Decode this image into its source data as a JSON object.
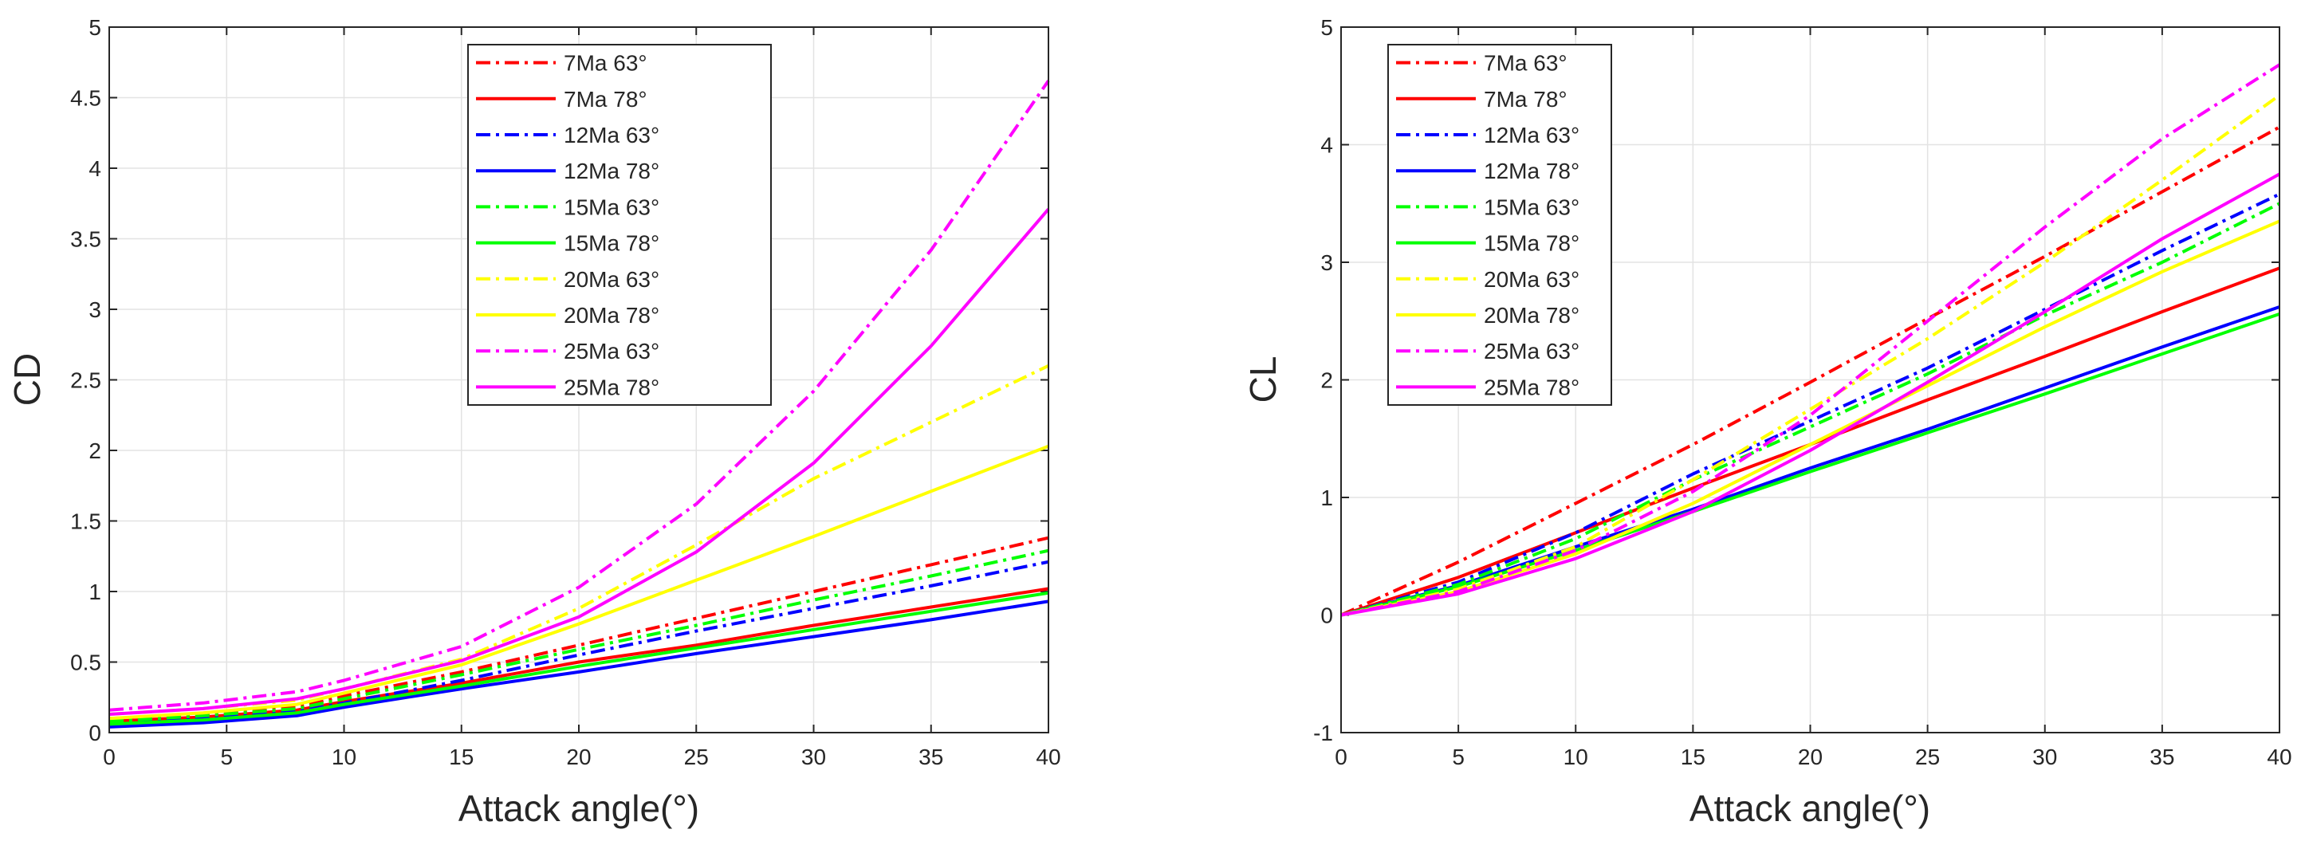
{
  "chart_data": [
    {
      "type": "line",
      "title": "",
      "xlabel": "Attack angle(°)",
      "ylabel": "CD",
      "xlim": [
        0,
        40
      ],
      "ylim": [
        0,
        5
      ],
      "xticks": [
        0,
        5,
        10,
        15,
        20,
        25,
        30,
        35,
        40
      ],
      "yticks": [
        0,
        0.5,
        1,
        1.5,
        2,
        2.5,
        3,
        3.5,
        4,
        4.5,
        5
      ],
      "xtick_labels": [
        "0",
        "5",
        "10",
        "15",
        "20",
        "25",
        "30",
        "35",
        "40"
      ],
      "ytick_labels": [
        "0",
        "0.5",
        "1",
        "1.5",
        "2",
        "2.5",
        "3",
        "3.5",
        "4",
        "4.5",
        "5"
      ],
      "grid": true,
      "legend_position": "top-center",
      "x": [
        0,
        4,
        8,
        10,
        15,
        20,
        25,
        30,
        35,
        40
      ],
      "series": [
        {
          "name": "7Ma 63°",
          "color": "#ff0000",
          "dash": "dashdot",
          "values": [
            0.1,
            0.13,
            0.18,
            0.26,
            0.43,
            0.62,
            0.81,
            1.0,
            1.19,
            1.38
          ]
        },
        {
          "name": "7Ma 78°",
          "color": "#ff0000",
          "dash": "solid",
          "values": [
            0.08,
            0.11,
            0.16,
            0.22,
            0.35,
            0.5,
            0.62,
            0.76,
            0.89,
            1.02
          ]
        },
        {
          "name": "12Ma 63°",
          "color": "#0000ff",
          "dash": "dashdot",
          "values": [
            0.06,
            0.1,
            0.15,
            0.21,
            0.37,
            0.55,
            0.72,
            0.88,
            1.04,
            1.21
          ]
        },
        {
          "name": "12Ma 78°",
          "color": "#0000ff",
          "dash": "solid",
          "values": [
            0.04,
            0.07,
            0.12,
            0.18,
            0.31,
            0.43,
            0.56,
            0.68,
            0.8,
            0.93
          ]
        },
        {
          "name": "15Ma 63°",
          "color": "#00ff00",
          "dash": "dashdot",
          "values": [
            0.08,
            0.12,
            0.17,
            0.24,
            0.41,
            0.59,
            0.76,
            0.94,
            1.11,
            1.29
          ]
        },
        {
          "name": "15Ma 78°",
          "color": "#00ff00",
          "dash": "solid",
          "values": [
            0.06,
            0.09,
            0.14,
            0.2,
            0.33,
            0.47,
            0.6,
            0.73,
            0.86,
            0.99
          ]
        },
        {
          "name": "20Ma 63°",
          "color": "#ffff00",
          "dash": "dashdot",
          "values": [
            0.13,
            0.17,
            0.23,
            0.31,
            0.52,
            0.88,
            1.33,
            1.8,
            2.2,
            2.6
          ]
        },
        {
          "name": "20Ma 78°",
          "color": "#ffff00",
          "dash": "solid",
          "values": [
            0.1,
            0.14,
            0.2,
            0.28,
            0.48,
            0.77,
            1.08,
            1.39,
            1.71,
            2.03
          ]
        },
        {
          "name": "25Ma 63°",
          "color": "#ff00ff",
          "dash": "dashdot",
          "values": [
            0.16,
            0.21,
            0.29,
            0.37,
            0.61,
            1.03,
            1.62,
            2.42,
            3.42,
            4.62
          ]
        },
        {
          "name": "25Ma 78°",
          "color": "#ff00ff",
          "dash": "solid",
          "values": [
            0.13,
            0.17,
            0.24,
            0.31,
            0.51,
            0.82,
            1.28,
            1.91,
            2.74,
            3.71
          ]
        }
      ]
    },
    {
      "type": "line",
      "title": "",
      "xlabel": "Attack angle(°)",
      "ylabel": "CL",
      "xlim": [
        0,
        40
      ],
      "ylim": [
        -1,
        5
      ],
      "xticks": [
        0,
        5,
        10,
        15,
        20,
        25,
        30,
        35,
        40
      ],
      "yticks": [
        -1,
        0,
        1,
        2,
        3,
        4,
        5
      ],
      "xtick_labels": [
        "0",
        "5",
        "10",
        "15",
        "20",
        "25",
        "30",
        "35",
        "40"
      ],
      "ytick_labels": [
        "-1",
        "0",
        "1",
        "2",
        "3",
        "4",
        "5"
      ],
      "grid": true,
      "legend_position": "top-left",
      "x": [
        0,
        5,
        10,
        15,
        20,
        25,
        30,
        35,
        40
      ],
      "series": [
        {
          "name": "7Ma 63°",
          "color": "#ff0000",
          "dash": "dashdot",
          "values": [
            0,
            0.45,
            0.95,
            1.45,
            1.98,
            2.52,
            3.05,
            3.6,
            4.15
          ]
        },
        {
          "name": "7Ma 78°",
          "color": "#ff0000",
          "dash": "solid",
          "values": [
            0,
            0.32,
            0.7,
            1.08,
            1.45,
            1.83,
            2.2,
            2.58,
            2.95
          ]
        },
        {
          "name": "12Ma 63°",
          "color": "#0000ff",
          "dash": "dashdot",
          "values": [
            0,
            0.28,
            0.7,
            1.2,
            1.65,
            2.1,
            2.6,
            3.1,
            3.58
          ]
        },
        {
          "name": "12Ma 78°",
          "color": "#0000ff",
          "dash": "solid",
          "values": [
            0,
            0.25,
            0.58,
            0.9,
            1.25,
            1.58,
            1.93,
            2.28,
            2.62
          ]
        },
        {
          "name": "15Ma 63°",
          "color": "#00ff00",
          "dash": "dashdot",
          "values": [
            0,
            0.26,
            0.65,
            1.15,
            1.6,
            2.05,
            2.55,
            3.0,
            3.5
          ]
        },
        {
          "name": "15Ma 78°",
          "color": "#00ff00",
          "dash": "solid",
          "values": [
            0,
            0.24,
            0.55,
            0.88,
            1.22,
            1.55,
            1.88,
            2.22,
            2.56
          ]
        },
        {
          "name": "20Ma 63°",
          "color": "#ffff00",
          "dash": "dashdot",
          "values": [
            0,
            0.22,
            0.58,
            1.15,
            1.75,
            2.35,
            3.0,
            3.7,
            4.42
          ]
        },
        {
          "name": "20Ma 78°",
          "color": "#ffff00",
          "dash": "solid",
          "values": [
            0,
            0.2,
            0.52,
            0.95,
            1.45,
            1.95,
            2.45,
            2.92,
            3.35
          ]
        },
        {
          "name": "25Ma 63°",
          "color": "#ff00ff",
          "dash": "dashdot",
          "values": [
            0,
            0.2,
            0.55,
            1.05,
            1.7,
            2.5,
            3.3,
            4.05,
            4.68
          ]
        },
        {
          "name": "25Ma 78°",
          "color": "#ff00ff",
          "dash": "solid",
          "values": [
            0,
            0.18,
            0.48,
            0.88,
            1.4,
            1.98,
            2.58,
            3.2,
            3.75
          ]
        }
      ]
    }
  ]
}
